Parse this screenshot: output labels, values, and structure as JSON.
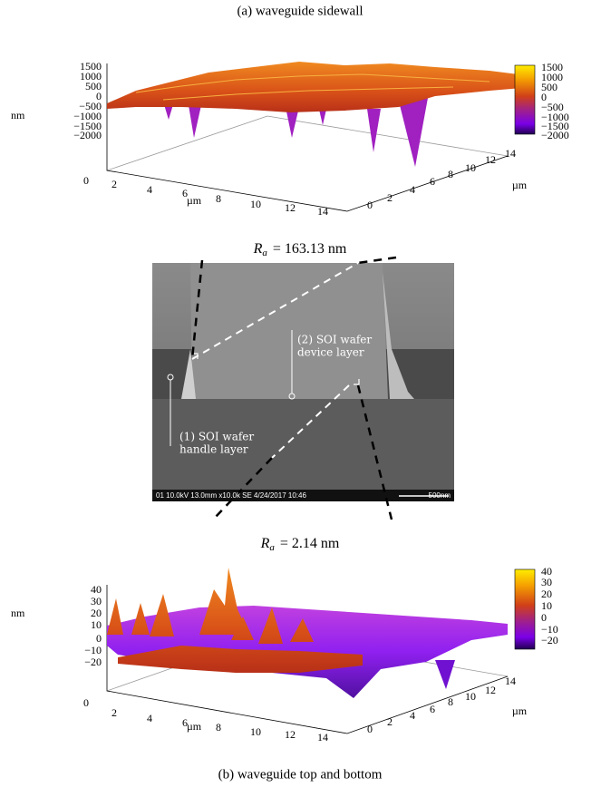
{
  "caption_top": "(a) waveguide sidewall",
  "plot_a": {
    "z_label": "nm",
    "z_ticks": [
      "1500",
      "1000",
      "500",
      "0",
      "−500",
      "−1000",
      "−1500",
      "−2000"
    ],
    "x_ticks": [
      "2",
      "4",
      "6",
      "8",
      "10",
      "12",
      "14"
    ],
    "x_label": "µm",
    "origin": "0",
    "y_ticks": [
      "0",
      "2",
      "4",
      "6",
      "8",
      "10",
      "12",
      "14"
    ],
    "y_label": "µm",
    "colorbar_ticks": [
      "1500",
      "1000",
      "500",
      "0",
      "−500",
      "−1000",
      "−1500",
      "−2000"
    ]
  },
  "ra_a": {
    "symbol": "R",
    "subscript": "a",
    "value": "= 163.13 nm"
  },
  "sem": {
    "device_label": [
      "(2) SOI wafer",
      "device layer"
    ],
    "handle_label": [
      "(1) SOI wafer",
      "handle layer"
    ],
    "info_bar": "01 10.0kV 13.0mm x10.0k SE 4/24/2017 10:46",
    "scale": "500nm"
  },
  "ra_b": {
    "symbol": "R",
    "subscript": "a",
    "value": "= 2.14 nm"
  },
  "plot_b": {
    "z_label": "nm",
    "z_ticks": [
      "40",
      "30",
      "20",
      "10",
      "0",
      "−10",
      "−20"
    ],
    "x_ticks": [
      "2",
      "4",
      "6",
      "8",
      "10",
      "12",
      "14"
    ],
    "x_label": "µm",
    "origin": "0",
    "y_ticks": [
      "0",
      "2",
      "4",
      "6",
      "8",
      "10",
      "12",
      "14"
    ],
    "y_label": "µm",
    "colorbar_ticks": [
      "40",
      "30",
      "20",
      "10",
      "0",
      "−10",
      "−20"
    ]
  },
  "caption_bottom": "(b) waveguide top and bottom"
}
